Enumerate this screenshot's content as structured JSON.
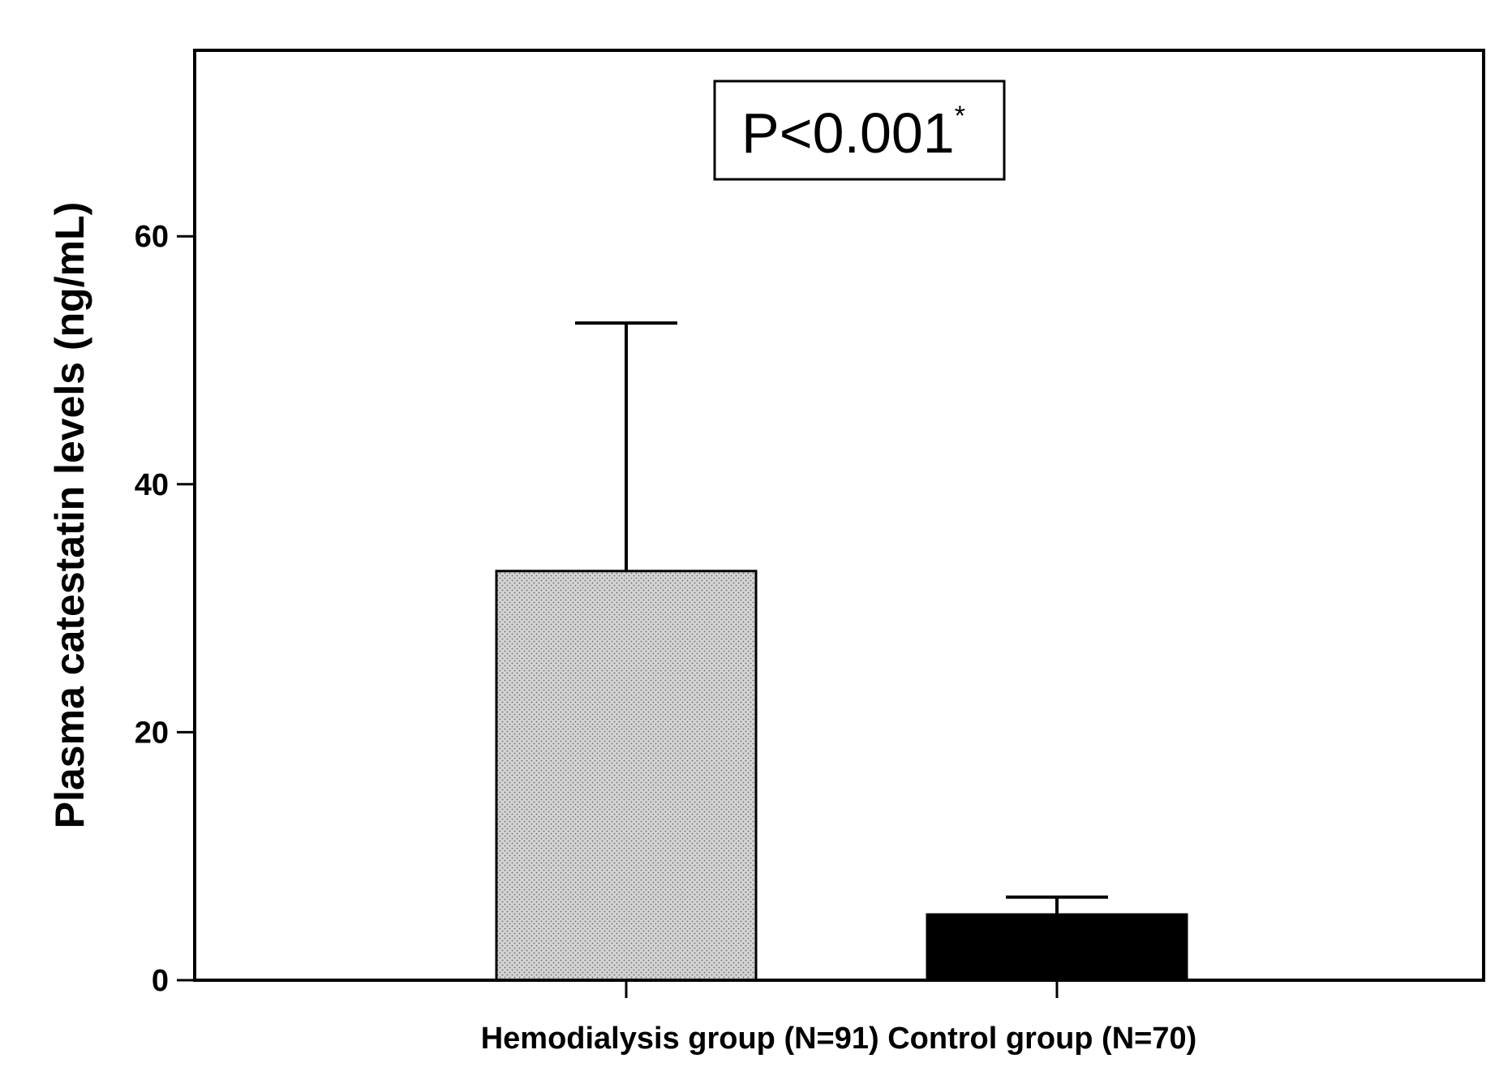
{
  "chart_data": {
    "type": "bar",
    "title": "",
    "xlabel": "",
    "ylabel": "Plasma catestatin levels (ng/mL)",
    "ylim": [
      0,
      75
    ],
    "yticks": [
      0,
      20,
      40,
      60
    ],
    "grid": false,
    "legend": "none",
    "categories": [
      "Hemodialysis group (N=91)",
      "Control group (N=70)"
    ],
    "values": [
      33,
      5.3
    ],
    "error_upper": [
      53,
      6.7
    ],
    "bar_styles": [
      {
        "fill": "#c9c9c9",
        "pattern": "dotted"
      },
      {
        "fill": "#000000",
        "pattern": "solid"
      }
    ],
    "annotation": {
      "text": "P<0.001",
      "superscript": "*"
    }
  }
}
